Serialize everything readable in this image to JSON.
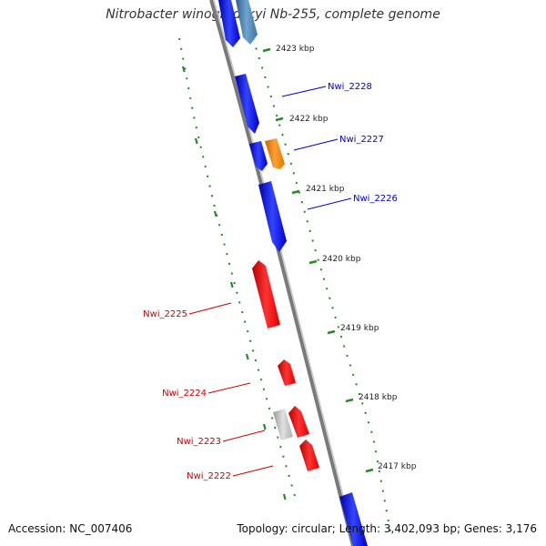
{
  "title": "Nitrobacter winogradskyi Nb-255, complete genome",
  "footer": {
    "accession": "Accession: NC_007406",
    "topology": "Topology: circular; Length: 3,402,093 bp; Genes: 3,176"
  },
  "colors": {
    "forward_gene": "#0000ff",
    "forward_gene_alt": "#4682b4",
    "reverse_gene": "#ff0000",
    "orange_gene": "#ff8c00",
    "gray_gene": "#c8c8c8",
    "backbone": "#808080",
    "tick_green": "#228b22",
    "label_blue": "#0000cc",
    "label_red": "#cc0000"
  },
  "ticks": [
    {
      "label": "2423 kbp"
    },
    {
      "label": "2422 kbp"
    },
    {
      "label": "2421 kbp"
    },
    {
      "label": "2420 kbp"
    },
    {
      "label": "2419 kbp"
    },
    {
      "label": "2418 kbp"
    },
    {
      "label": "2417 kbp"
    }
  ],
  "gene_labels": [
    {
      "label": "Nwi_2228",
      "strand": "forward"
    },
    {
      "label": "Nwi_2227",
      "strand": "forward"
    },
    {
      "label": "Nwi_2226",
      "strand": "forward"
    },
    {
      "label": "Nwi_2225",
      "strand": "reverse"
    },
    {
      "label": "Nwi_2224",
      "strand": "reverse"
    },
    {
      "label": "Nwi_2223",
      "strand": "reverse"
    },
    {
      "label": "Nwi_2222",
      "strand": "reverse"
    }
  ]
}
